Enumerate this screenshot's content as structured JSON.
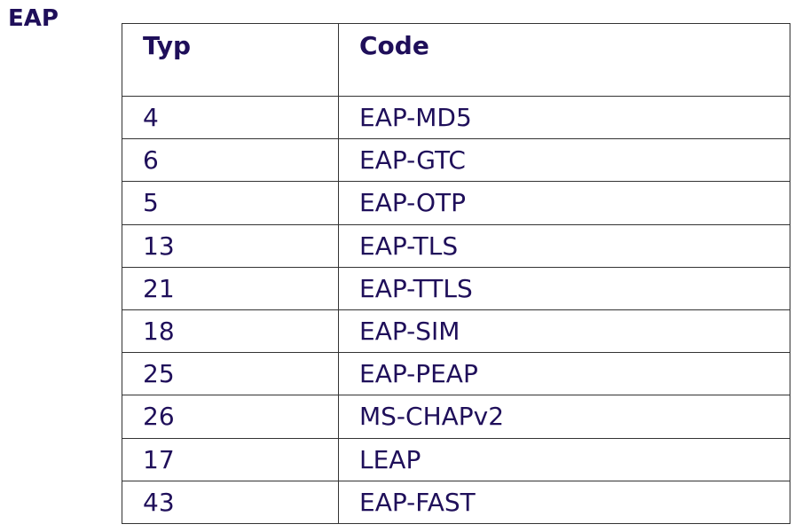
{
  "title": "EAP",
  "table": {
    "headers": [
      "Typ",
      "Code"
    ],
    "rows": [
      [
        "4",
        "EAP-MD5"
      ],
      [
        "6",
        "EAP-GTC"
      ],
      [
        "5",
        "EAP-OTP"
      ],
      [
        "13",
        "EAP-TLS"
      ],
      [
        "21",
        "EAP-TTLS"
      ],
      [
        "18",
        "EAP-SIM"
      ],
      [
        "25",
        "EAP-PEAP"
      ],
      [
        "26",
        "MS-CHAPv2"
      ],
      [
        "17",
        "LEAP"
      ],
      [
        "43",
        "EAP-FAST"
      ]
    ]
  },
  "colors": {
    "text": "#1f0f5a",
    "border": "#333333"
  }
}
